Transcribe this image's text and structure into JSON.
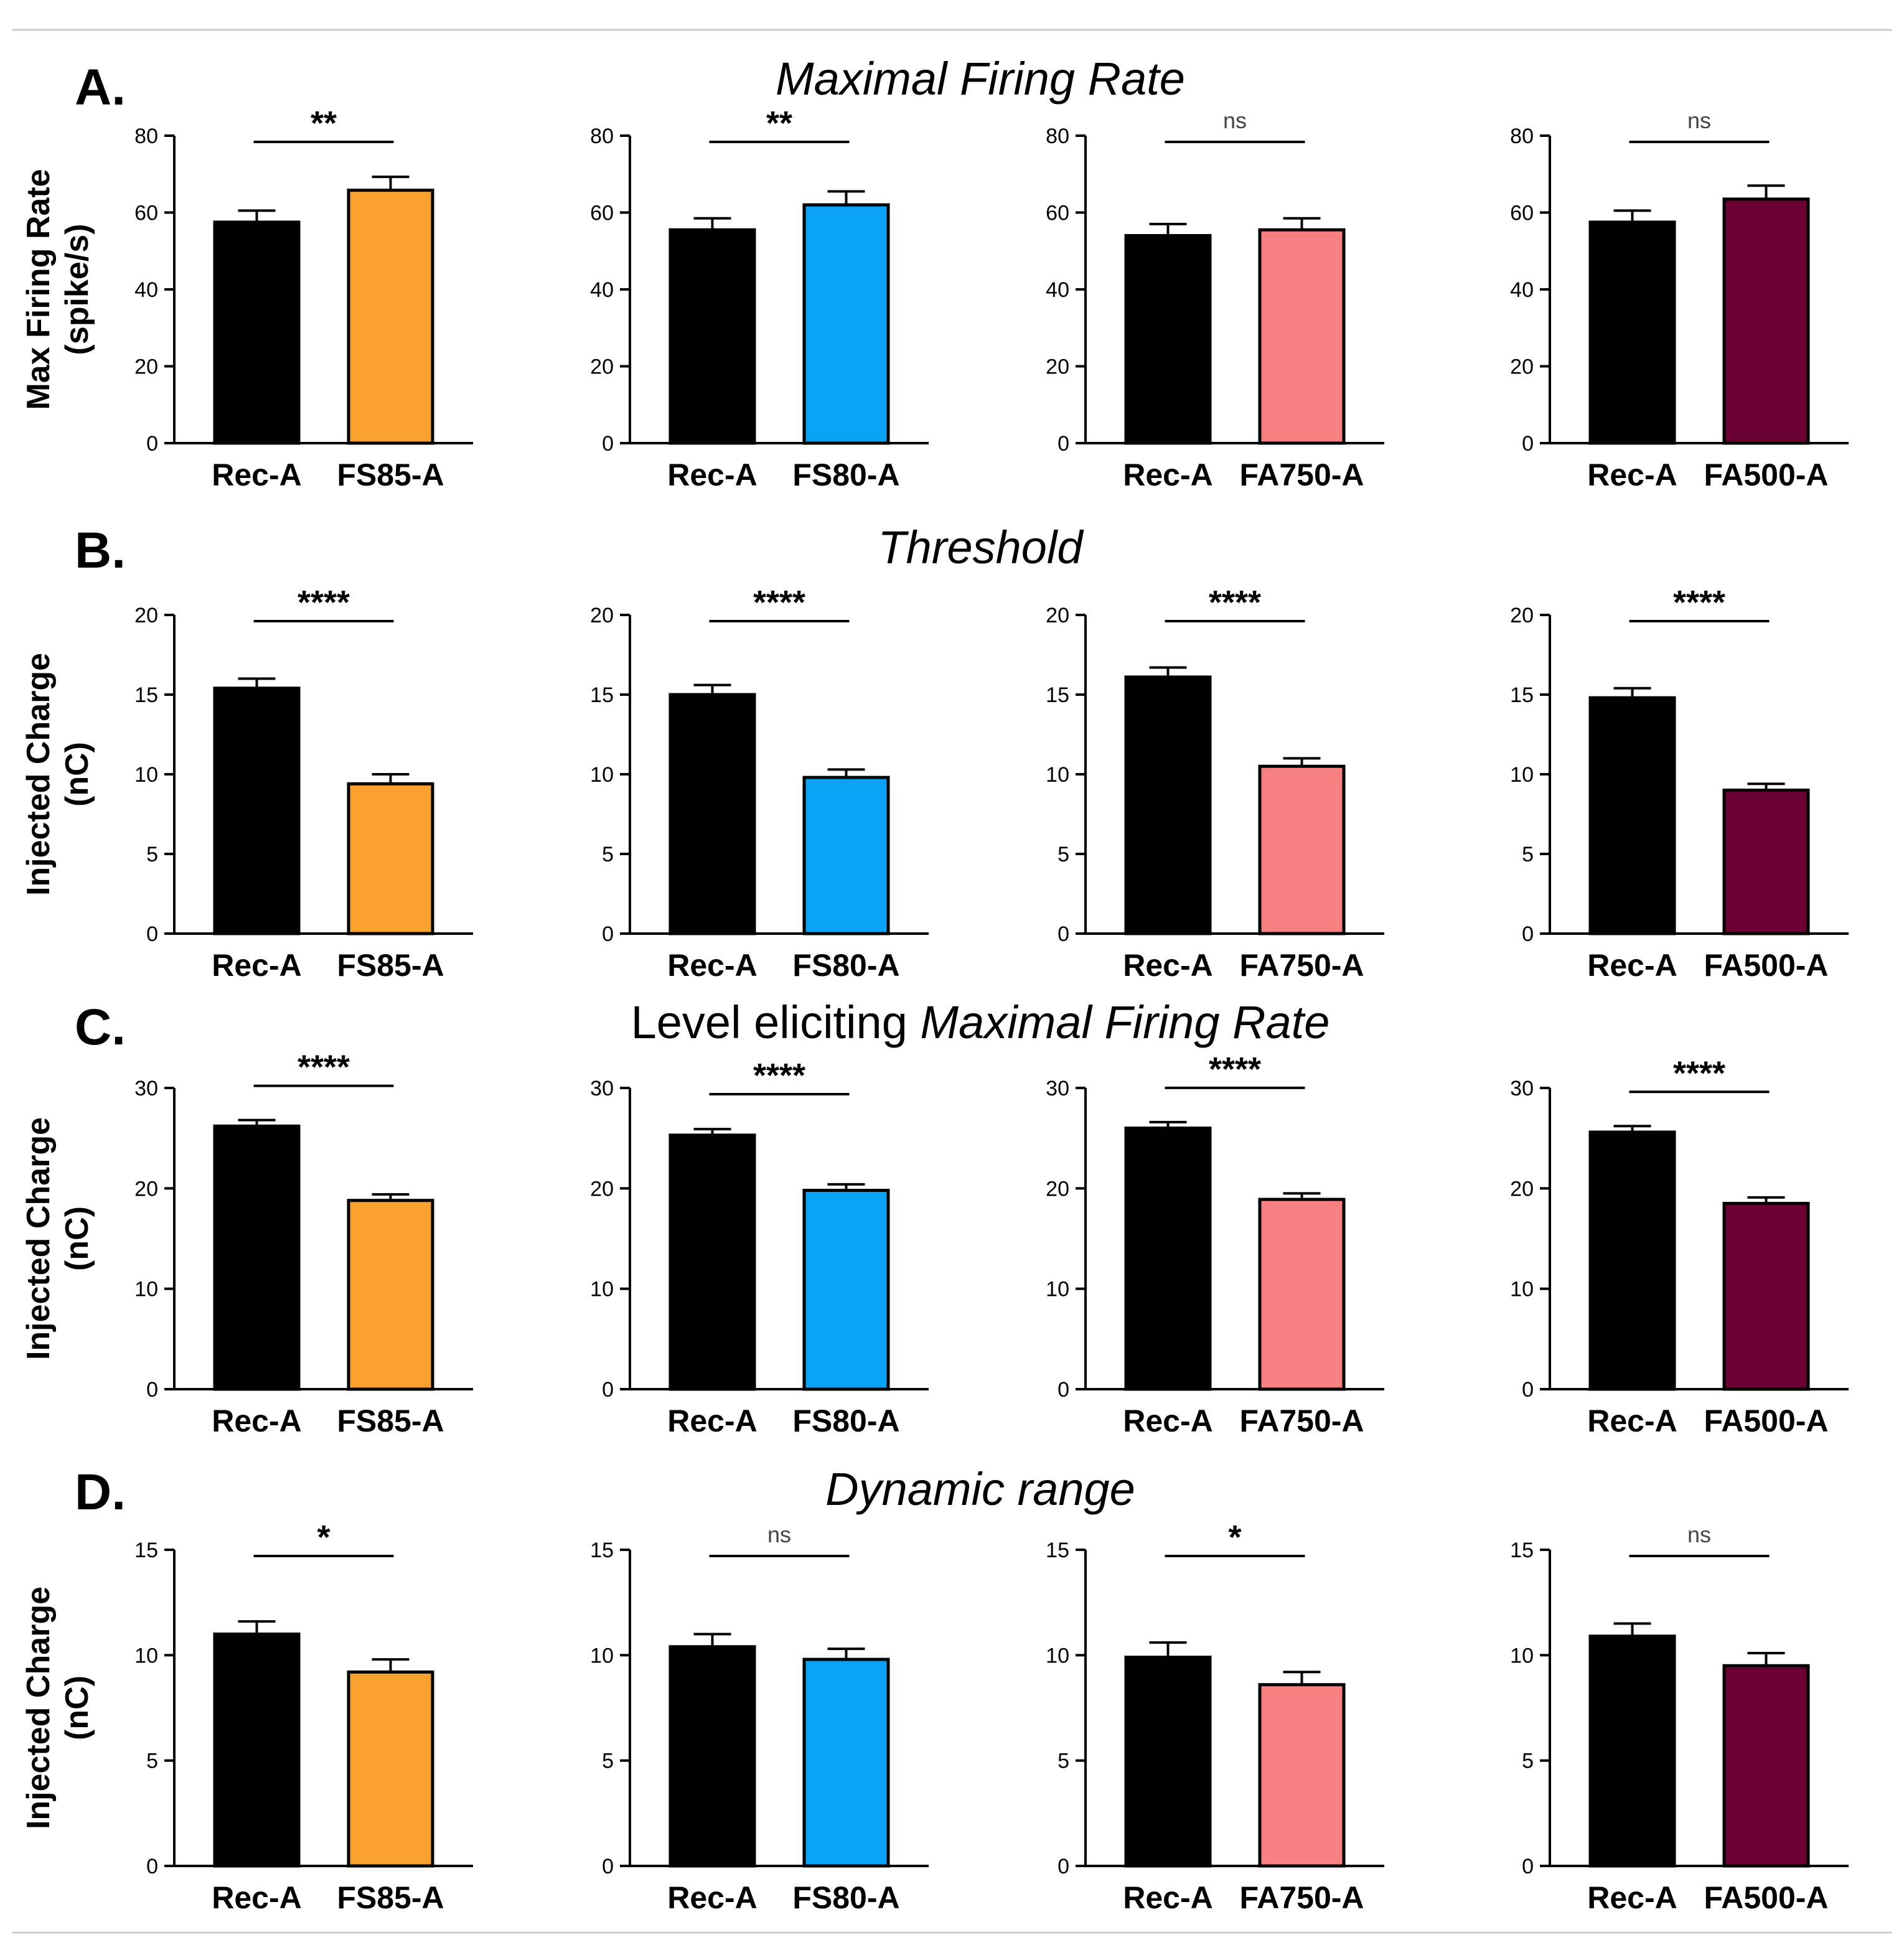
{
  "figure": {
    "rows": [
      {
        "label": "A.",
        "title_plain": "",
        "title_italic": "Maximal Firing Rate",
        "ylabel": [
          "Max Firing Rate",
          "(spike/s)"
        ]
      },
      {
        "label": "B.",
        "title_plain": "",
        "title_italic": "Threshold",
        "ylabel": [
          "Injected Charge",
          "(nC)"
        ]
      },
      {
        "label": "C.",
        "title_plain": "Level eliciting ",
        "title_italic": "Maximal Firing Rate",
        "ylabel": [
          "Injected Charge",
          "(nC)"
        ]
      },
      {
        "label": "D.",
        "title_plain": "",
        "title_italic": "Dynamic range",
        "ylabel": [
          "Injected Charge",
          "(nC)"
        ]
      }
    ]
  },
  "colors": {
    "rec": "#000000",
    "FS85-A": "#f9a12e",
    "FS80-A": "#0aa2f5",
    "FA750-A": "#f98080",
    "FA500-A": "#6b0035",
    "axis": "#000000",
    "rule": "#cccccc"
  },
  "chart_data": [
    {
      "type": "bar",
      "row": 0,
      "col": 0,
      "categories": [
        "Rec-A",
        "FS85-A"
      ],
      "values": [
        57.5,
        65.8
      ],
      "errors": [
        3.0,
        3.5
      ],
      "ylim": [
        0,
        80
      ],
      "yticks": [
        0,
        20,
        40,
        60,
        80
      ],
      "significance": "**",
      "colors": [
        "#000000",
        "#f9a12e"
      ]
    },
    {
      "type": "bar",
      "row": 0,
      "col": 1,
      "categories": [
        "Rec-A",
        "FS80-A"
      ],
      "values": [
        55.5,
        62.0
      ],
      "errors": [
        3.0,
        3.5
      ],
      "ylim": [
        0,
        80
      ],
      "yticks": [
        0,
        20,
        40,
        60,
        80
      ],
      "significance": "**",
      "colors": [
        "#000000",
        "#0aa2f5"
      ]
    },
    {
      "type": "bar",
      "row": 0,
      "col": 2,
      "categories": [
        "Rec-A",
        "FA750-A"
      ],
      "values": [
        54.0,
        55.5
      ],
      "errors": [
        3.0,
        3.0
      ],
      "ylim": [
        0,
        80
      ],
      "yticks": [
        0,
        20,
        40,
        60,
        80
      ],
      "significance": "ns",
      "colors": [
        "#000000",
        "#f98080"
      ]
    },
    {
      "type": "bar",
      "row": 0,
      "col": 3,
      "categories": [
        "Rec-A",
        "FA500-A"
      ],
      "values": [
        57.5,
        63.5
      ],
      "errors": [
        3.0,
        3.5
      ],
      "ylim": [
        0,
        80
      ],
      "yticks": [
        0,
        20,
        40,
        60,
        80
      ],
      "significance": "ns",
      "colors": [
        "#000000",
        "#6b0035"
      ]
    },
    {
      "type": "bar",
      "row": 1,
      "col": 0,
      "categories": [
        "Rec-A",
        "FS85-A"
      ],
      "values": [
        15.4,
        9.4
      ],
      "errors": [
        0.6,
        0.6
      ],
      "ylim": [
        0,
        20
      ],
      "yticks": [
        0,
        5,
        10,
        15,
        20
      ],
      "significance": "****",
      "colors": [
        "#000000",
        "#f9a12e"
      ]
    },
    {
      "type": "bar",
      "row": 1,
      "col": 1,
      "categories": [
        "Rec-A",
        "FS80-A"
      ],
      "values": [
        15.0,
        9.8
      ],
      "errors": [
        0.6,
        0.5
      ],
      "ylim": [
        0,
        20
      ],
      "yticks": [
        0,
        5,
        10,
        15,
        20
      ],
      "significance": "****",
      "colors": [
        "#000000",
        "#0aa2f5"
      ]
    },
    {
      "type": "bar",
      "row": 1,
      "col": 2,
      "categories": [
        "Rec-A",
        "FA750-A"
      ],
      "values": [
        16.1,
        10.5
      ],
      "errors": [
        0.6,
        0.5
      ],
      "ylim": [
        0,
        20
      ],
      "yticks": [
        0,
        5,
        10,
        15,
        20
      ],
      "significance": "****",
      "colors": [
        "#000000",
        "#f98080"
      ]
    },
    {
      "type": "bar",
      "row": 1,
      "col": 3,
      "categories": [
        "Rec-A",
        "FA500-A"
      ],
      "values": [
        14.8,
        9.0
      ],
      "errors": [
        0.6,
        0.4
      ],
      "ylim": [
        0,
        20
      ],
      "yticks": [
        0,
        5,
        10,
        15,
        20
      ],
      "significance": "****",
      "colors": [
        "#000000",
        "#6b0035"
      ]
    },
    {
      "type": "bar",
      "row": 2,
      "col": 0,
      "categories": [
        "Rec-A",
        "FS85-A"
      ],
      "values": [
        26.2,
        18.8
      ],
      "errors": [
        0.6,
        0.6
      ],
      "ylim": [
        0,
        30
      ],
      "yticks": [
        0,
        10,
        20,
        30
      ],
      "significance": "****",
      "colors": [
        "#000000",
        "#f9a12e"
      ]
    },
    {
      "type": "bar",
      "row": 2,
      "col": 1,
      "categories": [
        "Rec-A",
        "FS80-A"
      ],
      "values": [
        25.3,
        19.8
      ],
      "errors": [
        0.6,
        0.6
      ],
      "ylim": [
        0,
        30
      ],
      "yticks": [
        0,
        10,
        20,
        30
      ],
      "significance": "****",
      "colors": [
        "#000000",
        "#0aa2f5"
      ]
    },
    {
      "type": "bar",
      "row": 2,
      "col": 2,
      "categories": [
        "Rec-A",
        "FA750-A"
      ],
      "values": [
        26.0,
        18.9
      ],
      "errors": [
        0.6,
        0.6
      ],
      "ylim": [
        0,
        30
      ],
      "yticks": [
        0,
        10,
        20,
        30
      ],
      "significance": "****",
      "colors": [
        "#000000",
        "#f98080"
      ]
    },
    {
      "type": "bar",
      "row": 2,
      "col": 3,
      "categories": [
        "Rec-A",
        "FA500-A"
      ],
      "values": [
        25.6,
        18.5
      ],
      "errors": [
        0.6,
        0.6
      ],
      "ylim": [
        0,
        30
      ],
      "yticks": [
        0,
        10,
        20,
        30
      ],
      "significance": "****",
      "colors": [
        "#000000",
        "#6b0035"
      ]
    },
    {
      "type": "bar",
      "row": 3,
      "col": 0,
      "categories": [
        "Rec-A",
        "FS85-A"
      ],
      "values": [
        11.0,
        9.2
      ],
      "errors": [
        0.6,
        0.6
      ],
      "ylim": [
        0,
        15
      ],
      "yticks": [
        0,
        5,
        10,
        15
      ],
      "significance": "*",
      "colors": [
        "#000000",
        "#f9a12e"
      ]
    },
    {
      "type": "bar",
      "row": 3,
      "col": 1,
      "categories": [
        "Rec-A",
        "FS80-A"
      ],
      "values": [
        10.4,
        9.8
      ],
      "errors": [
        0.6,
        0.5
      ],
      "ylim": [
        0,
        15
      ],
      "yticks": [
        0,
        5,
        10,
        15
      ],
      "significance": "ns",
      "colors": [
        "#000000",
        "#0aa2f5"
      ]
    },
    {
      "type": "bar",
      "row": 3,
      "col": 2,
      "categories": [
        "Rec-A",
        "FA750-A"
      ],
      "values": [
        9.9,
        8.6
      ],
      "errors": [
        0.7,
        0.6
      ],
      "ylim": [
        0,
        15
      ],
      "yticks": [
        0,
        5,
        10,
        15
      ],
      "significance": "*",
      "colors": [
        "#000000",
        "#f98080"
      ]
    },
    {
      "type": "bar",
      "row": 3,
      "col": 3,
      "categories": [
        "Rec-A",
        "FA500-A"
      ],
      "values": [
        10.9,
        9.5
      ],
      "errors": [
        0.6,
        0.6
      ],
      "ylim": [
        0,
        15
      ],
      "yticks": [
        0,
        5,
        10,
        15
      ],
      "significance": "ns",
      "colors": [
        "#000000",
        "#6b0035"
      ]
    }
  ]
}
